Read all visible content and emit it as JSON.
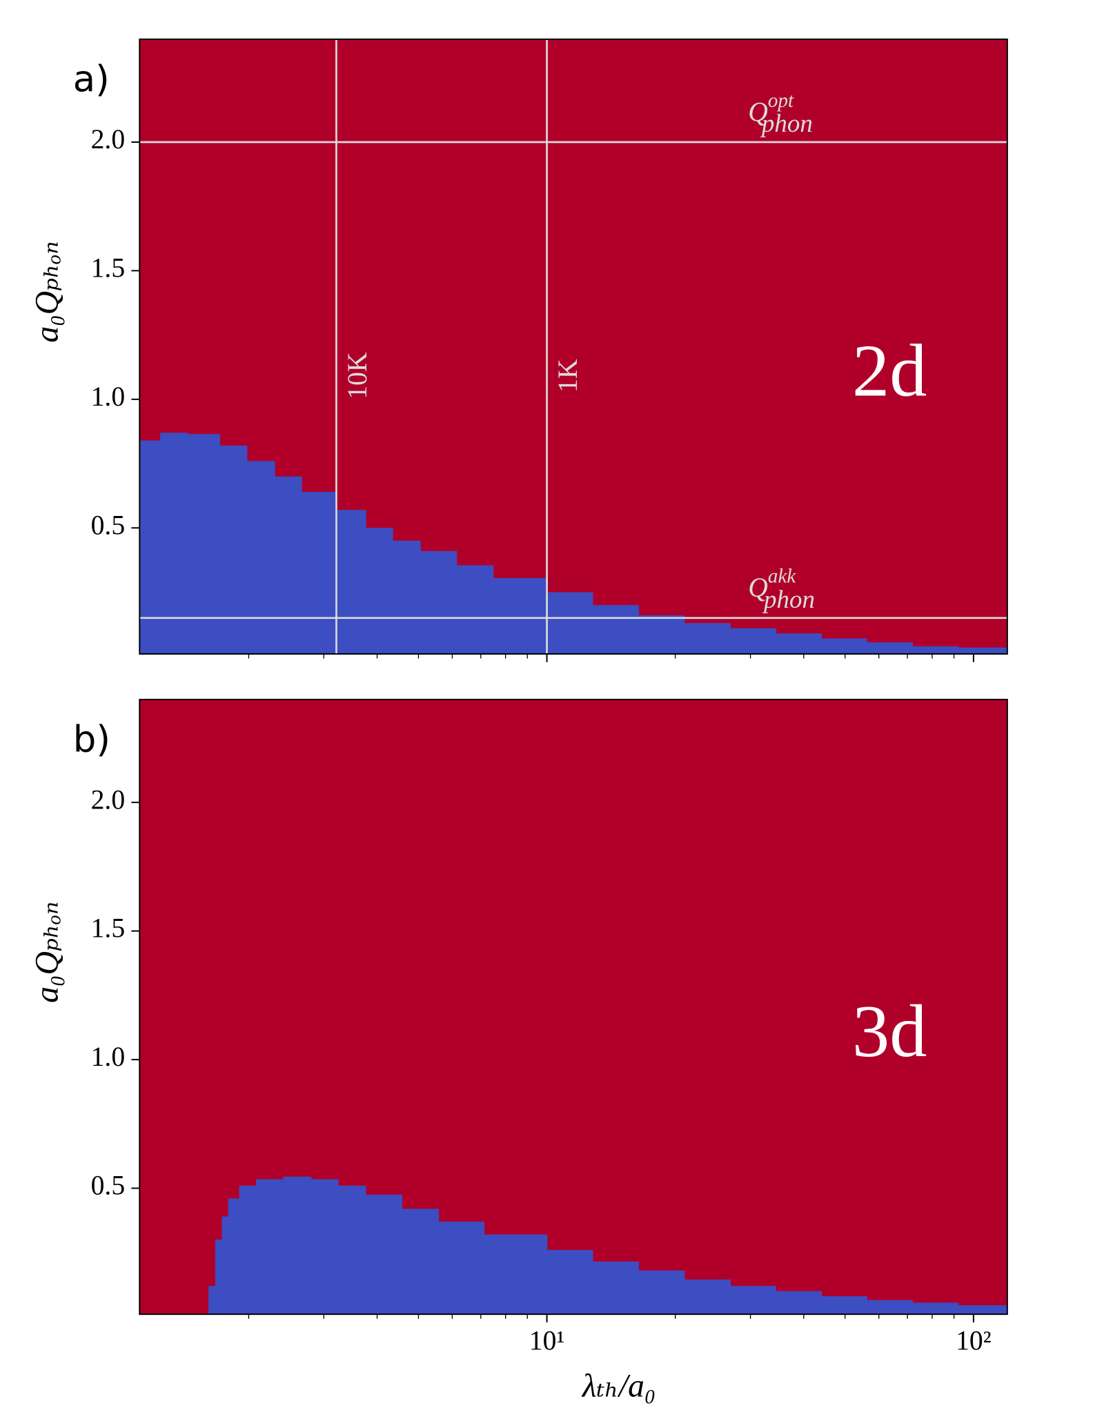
{
  "chart_data": [
    {
      "type": "step-area",
      "panel_label": "a)",
      "text": "2d",
      "background": "#b0002a",
      "ylabel": "a₀Qₚₕₒₙ",
      "xlog": true,
      "xlim": [
        1.11,
        120
      ],
      "xticks": [
        {
          "value": 10,
          "label": "10¹"
        },
        {
          "value": 100,
          "label": "10²"
        }
      ],
      "xminor_ticks": [
        2,
        3,
        4,
        5,
        6,
        7,
        8,
        9,
        20,
        30,
        40,
        50,
        60,
        70,
        80,
        90
      ],
      "ylim": [
        0.01,
        2.4
      ],
      "yticks": [
        0.5,
        {
          "value": 1,
          "label": "1.0"
        },
        1.5,
        {
          "value": 2,
          "label": "2.0"
        }
      ],
      "series": [
        {
          "color": "#3c4ec2",
          "x": [
            1.11,
            1.24,
            1.44,
            1.71,
            1.98,
            2.3,
            2.66,
            3.21,
            3.76,
            4.35,
            5.05,
            6.14,
            7.48,
            10,
            12.8,
            16.4,
            21,
            26.9,
            34.4,
            44,
            56.2,
            71.9,
            92
          ],
          "values": [
            0.84,
            0.87,
            0.865,
            0.82,
            0.76,
            0.7,
            0.64,
            0.57,
            0.5,
            0.45,
            0.41,
            0.355,
            0.305,
            0.25,
            0.2,
            0.16,
            0.13,
            0.11,
            0.09,
            0.07,
            0.055,
            0.04,
            0.035
          ]
        }
      ],
      "vlines": [
        {
          "value": 3.21,
          "label": "10K"
        },
        {
          "value": 10,
          "label": "1K"
        }
      ],
      "hlines": [
        {
          "value": 2,
          "label": {
            "base": "Q",
            "sup": "opt",
            "sub": "phon"
          }
        },
        {
          "value": 0.15,
          "label": {
            "base": "Q",
            "sup": "akk",
            "sub": "phon"
          }
        }
      ]
    },
    {
      "type": "step-area",
      "panel_label": "b)",
      "text": "3d",
      "background": "#b0002a",
      "ylabel": "a₀Qₚₕₒₙ",
      "xlabel": "λₜₕ/a₀",
      "xlog": true,
      "xlim": [
        1.11,
        120
      ],
      "xticks": [
        {
          "value": 10,
          "label": "10¹"
        },
        {
          "value": 100,
          "label": "10²"
        }
      ],
      "xminor_ticks": [
        2,
        3,
        4,
        5,
        6,
        7,
        8,
        9,
        20,
        30,
        40,
        50,
        60,
        70,
        80,
        90
      ],
      "ylim": [
        0.01,
        2.4
      ],
      "yticks": [
        0.5,
        {
          "value": 1,
          "label": "1.0"
        },
        1.5,
        {
          "value": 2,
          "label": "2.0"
        }
      ],
      "series": [
        {
          "color": "#3c4ec2",
          "x": [
            1.61,
            1.67,
            1.73,
            1.79,
            1.9,
            2.08,
            2.41,
            2.8,
            3.24,
            3.76,
            4.57,
            5.57,
            7.12,
            10,
            12.8,
            16.4,
            21,
            26.9,
            34.4,
            44,
            56.2,
            71.9,
            92
          ],
          "values": [
            0.12,
            0.3,
            0.39,
            0.46,
            0.51,
            0.535,
            0.545,
            0.535,
            0.51,
            0.475,
            0.42,
            0.37,
            0.32,
            0.26,
            0.215,
            0.18,
            0.145,
            0.12,
            0.1,
            0.08,
            0.065,
            0.055,
            0.045
          ]
        }
      ]
    }
  ]
}
